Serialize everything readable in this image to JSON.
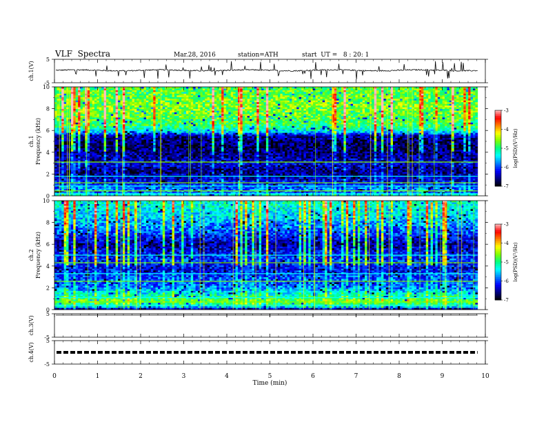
{
  "header": {
    "title": "VLF  Spectra",
    "date": "Mar.28, 2016",
    "station": "station=ATH",
    "start": "start  UT =   8 : 20: 1"
  },
  "chart_data": {
    "type": "heatmap",
    "xlabel": "Time  (min)",
    "xlim": [
      0,
      10
    ],
    "x_ticks": [
      "0",
      "1",
      "2",
      "3",
      "4",
      "5",
      "6",
      "7",
      "8",
      "9",
      "10"
    ],
    "colors": {
      "colormap": [
        "#000000",
        "#000080",
        "#0000ff",
        "#0080ff",
        "#00ffff",
        "#00ff80",
        "#80ff00",
        "#ffff00",
        "#ff8000",
        "#ff0000",
        "#ffc0c0"
      ],
      "trace": "#000000",
      "axis": "#000000"
    },
    "panels": [
      {
        "id": "ch1V",
        "kind": "waveform",
        "ylabel": "ch.1(V)",
        "ylim": [
          -5,
          5
        ],
        "y_ticks": [
          "5",
          "-5"
        ],
        "mean": 0.3,
        "amplitude": 0.5,
        "spikes": true
      },
      {
        "id": "ch1spec",
        "kind": "spectrogram",
        "ylabel": "ch.1",
        "ylabel2": "Frequency  (kHz)",
        "ylim": [
          0,
          10
        ],
        "y_ticks": [
          "0",
          "2",
          "4",
          "6",
          "8",
          "10"
        ],
        "data_end_min": 9.82,
        "profile_khz": [
          0,
          0.3,
          0.6,
          1.0,
          1.5,
          2.2,
          3.0,
          3.5,
          4.5,
          5.5,
          5.9,
          6.5,
          8.0,
          10.0
        ],
        "profile_level": [
          -5.2,
          -6.0,
          -5.8,
          -6.1,
          -6.3,
          -6.6,
          -6.3,
          -6.5,
          -6.7,
          -6.5,
          -5.4,
          -4.9,
          -4.6,
          -4.8
        ],
        "lines_khz": [
          0.2,
          0.45,
          0.9,
          1.2,
          1.8,
          3.1
        ],
        "colorbar": {
          "label": "log(PSD)(V²/Hz)",
          "range": [
            -7,
            -3
          ],
          "ticks": [
            "-3",
            "-4",
            "-5",
            "-6",
            "-7"
          ]
        }
      },
      {
        "id": "ch2spec",
        "kind": "spectrogram",
        "ylabel": "ch.2",
        "ylabel2": "Frequency  (kHz)",
        "ylim": [
          0,
          10
        ],
        "y_ticks": [
          "0",
          "2",
          "4",
          "6",
          "8",
          "10"
        ],
        "data_end_min": 9.82,
        "profile_khz": [
          0,
          0.3,
          0.8,
          1.3,
          2.0,
          3.0,
          3.8,
          4.5,
          5.2,
          6.0,
          7.0,
          8.5,
          10.0
        ],
        "profile_level": [
          -6.8,
          -5.2,
          -4.7,
          -5.2,
          -5.8,
          -6.0,
          -6.3,
          -6.0,
          -6.2,
          -6.5,
          -6.0,
          -5.5,
          -5.2
        ],
        "lines_khz": [
          0.4,
          0.7,
          1.1,
          2.6,
          3.3,
          4.3,
          5.0
        ],
        "colorbar": {
          "label": "log(PSD)(V²/Hz)",
          "range": [
            -7,
            -3
          ],
          "ticks": [
            "-3",
            "-4",
            "-5",
            "-6",
            "-7"
          ]
        }
      },
      {
        "id": "ch3V",
        "kind": "waveform",
        "ylabel": "ch.3(V)",
        "ylim": [
          -5,
          5
        ],
        "y_ticks": [
          "5",
          "-5"
        ],
        "mean": 5.0,
        "amplitude": 0.0,
        "spikes": false
      },
      {
        "id": "ch4V",
        "kind": "waveform",
        "ylabel": "ch.4(V)",
        "ylim": [
          -5,
          5
        ],
        "y_ticks": [
          "5",
          "-5"
        ],
        "mean": 0.0,
        "amplitude": 0.0,
        "dashed": true
      }
    ]
  }
}
